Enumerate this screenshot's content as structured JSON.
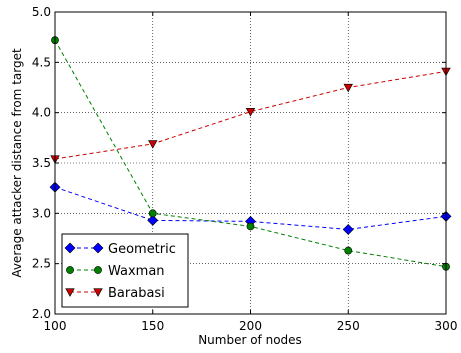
{
  "chart_data": {
    "type": "line",
    "xlabel": "Number of nodes",
    "ylabel": "Average attacker distance from target",
    "x": [
      100,
      150,
      200,
      250,
      300
    ],
    "xlim": [
      100,
      300
    ],
    "ylim": [
      2.0,
      5.0
    ],
    "xticks": [
      "100",
      "150",
      "200",
      "250",
      "300"
    ],
    "yticks": [
      "2.0",
      "2.5",
      "3.0",
      "3.5",
      "4.0",
      "4.5",
      "5.0"
    ],
    "grid": true,
    "legend_position": "lower-left",
    "series": [
      {
        "name": "Geometric",
        "color": "#0000ff",
        "marker": "diamond",
        "values": [
          3.26,
          2.93,
          2.92,
          2.84,
          2.97
        ]
      },
      {
        "name": "Waxman",
        "color": "#008000",
        "marker": "circle",
        "values": [
          4.72,
          3.0,
          2.87,
          2.63,
          2.47
        ]
      },
      {
        "name": "Barabasi",
        "color": "#cc0000",
        "marker": "triangle-down",
        "values": [
          3.54,
          3.69,
          4.01,
          4.25,
          4.41
        ]
      }
    ]
  }
}
